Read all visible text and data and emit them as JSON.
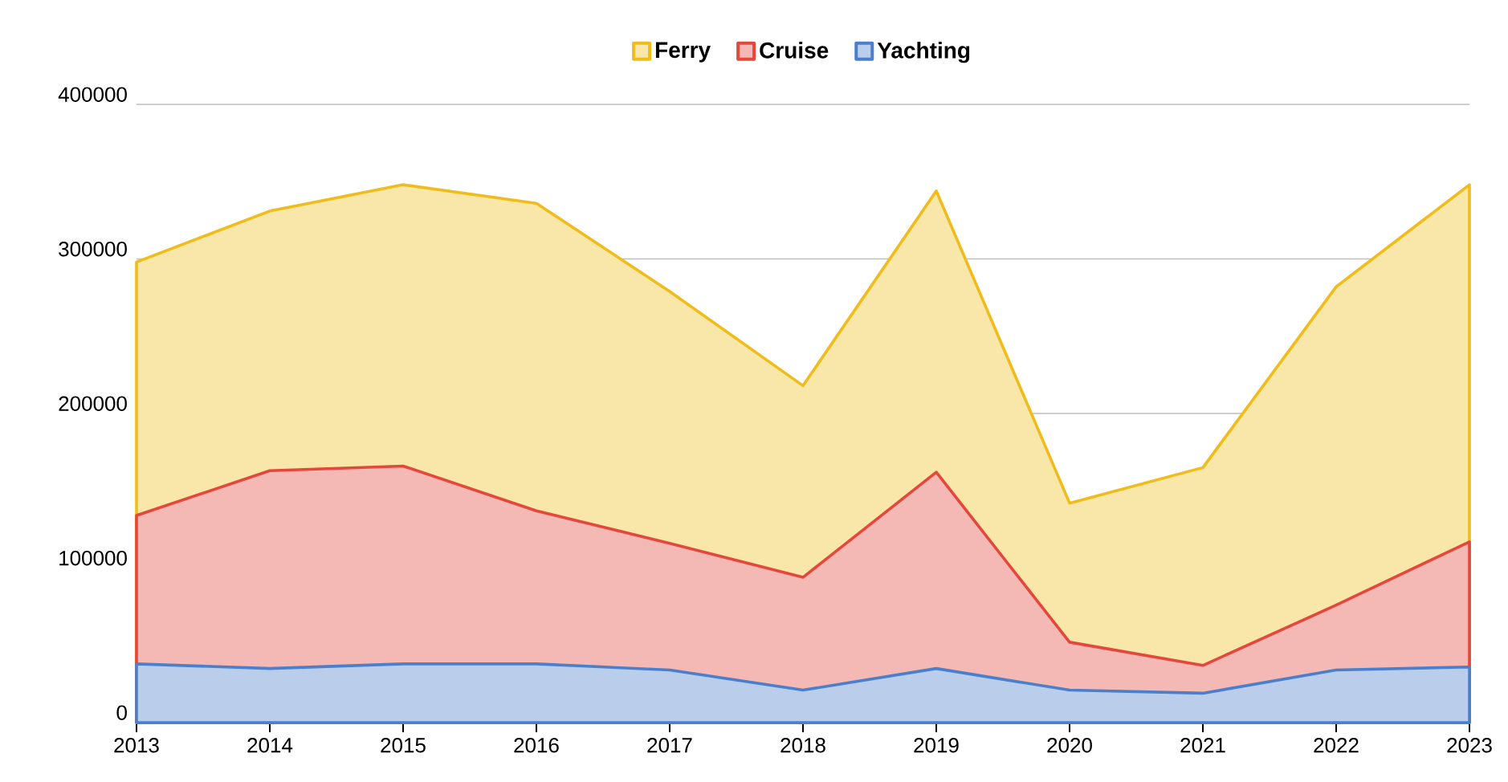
{
  "chart_data": {
    "type": "area",
    "categories": [
      "2013",
      "2014",
      "2015",
      "2016",
      "2017",
      "2018",
      "2019",
      "2020",
      "2021",
      "2022",
      "2023"
    ],
    "series": [
      {
        "name": "Ferry",
        "color": "#f0bc1c",
        "values": [
          298000,
          331000,
          348000,
          336000,
          279000,
          218000,
          344000,
          142000,
          165000,
          282000,
          348000
        ]
      },
      {
        "name": "Cruise",
        "color": "#e4473c",
        "values": [
          134000,
          163000,
          166000,
          137000,
          116000,
          94000,
          162000,
          52000,
          37000,
          76000,
          117000
        ]
      },
      {
        "name": "Yachting",
        "color": "#4a7fcc",
        "values": [
          38000,
          35000,
          38000,
          38000,
          34000,
          21000,
          35000,
          21000,
          19000,
          34000,
          36000
        ]
      }
    ],
    "ylim": [
      0,
      400000
    ],
    "yticks": [
      0,
      100000,
      200000,
      300000,
      400000
    ],
    "grid": "y",
    "legend": "top"
  }
}
